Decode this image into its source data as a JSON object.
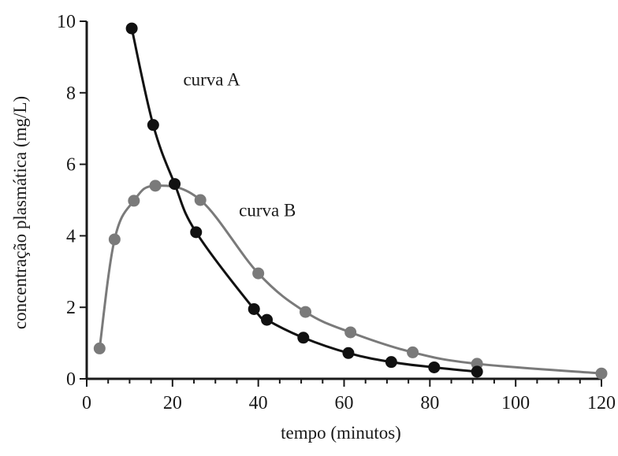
{
  "chart_data": {
    "type": "line",
    "title": "",
    "xlabel": "tempo (minutos)",
    "ylabel": "concentração plasmática (mg/L)",
    "xlim": [
      0,
      120
    ],
    "ylim": [
      0,
      10
    ],
    "xticks": [
      0,
      20,
      40,
      60,
      80,
      100,
      120
    ],
    "yticks": [
      0,
      2,
      4,
      6,
      8,
      10
    ],
    "xticks_minor": [
      5,
      10,
      15,
      25,
      30,
      35,
      45,
      50,
      55,
      65,
      70,
      75,
      85,
      90,
      95,
      105,
      110,
      115
    ],
    "grid": false,
    "legend": "none",
    "series": [
      {
        "name": "curva A",
        "color": "#111111",
        "label_at": [
          22.5,
          8.2
        ],
        "points": [
          {
            "x": 10.5,
            "y": 9.8
          },
          {
            "x": 15.5,
            "y": 7.1
          },
          {
            "x": 20.5,
            "y": 5.45
          },
          {
            "x": 25.5,
            "y": 4.1
          },
          {
            "x": 39,
            "y": 1.95
          },
          {
            "x": 42,
            "y": 1.65
          },
          {
            "x": 50.5,
            "y": 1.15
          },
          {
            "x": 61,
            "y": 0.72
          },
          {
            "x": 71,
            "y": 0.47
          },
          {
            "x": 81,
            "y": 0.32
          },
          {
            "x": 91,
            "y": 0.2
          }
        ]
      },
      {
        "name": "curva B",
        "color": "#7a7a7a",
        "label_at": [
          35.5,
          4.55
        ],
        "points": [
          {
            "x": 3,
            "y": 0.85
          },
          {
            "x": 6.5,
            "y": 3.9
          },
          {
            "x": 11,
            "y": 4.98
          },
          {
            "x": 16,
            "y": 5.4
          },
          {
            "x": 26.5,
            "y": 5.0
          },
          {
            "x": 40,
            "y": 2.95
          },
          {
            "x": 51,
            "y": 1.87
          },
          {
            "x": 61.5,
            "y": 1.3
          },
          {
            "x": 76,
            "y": 0.74
          },
          {
            "x": 91,
            "y": 0.42
          },
          {
            "x": 120,
            "y": 0.15
          }
        ]
      }
    ]
  }
}
